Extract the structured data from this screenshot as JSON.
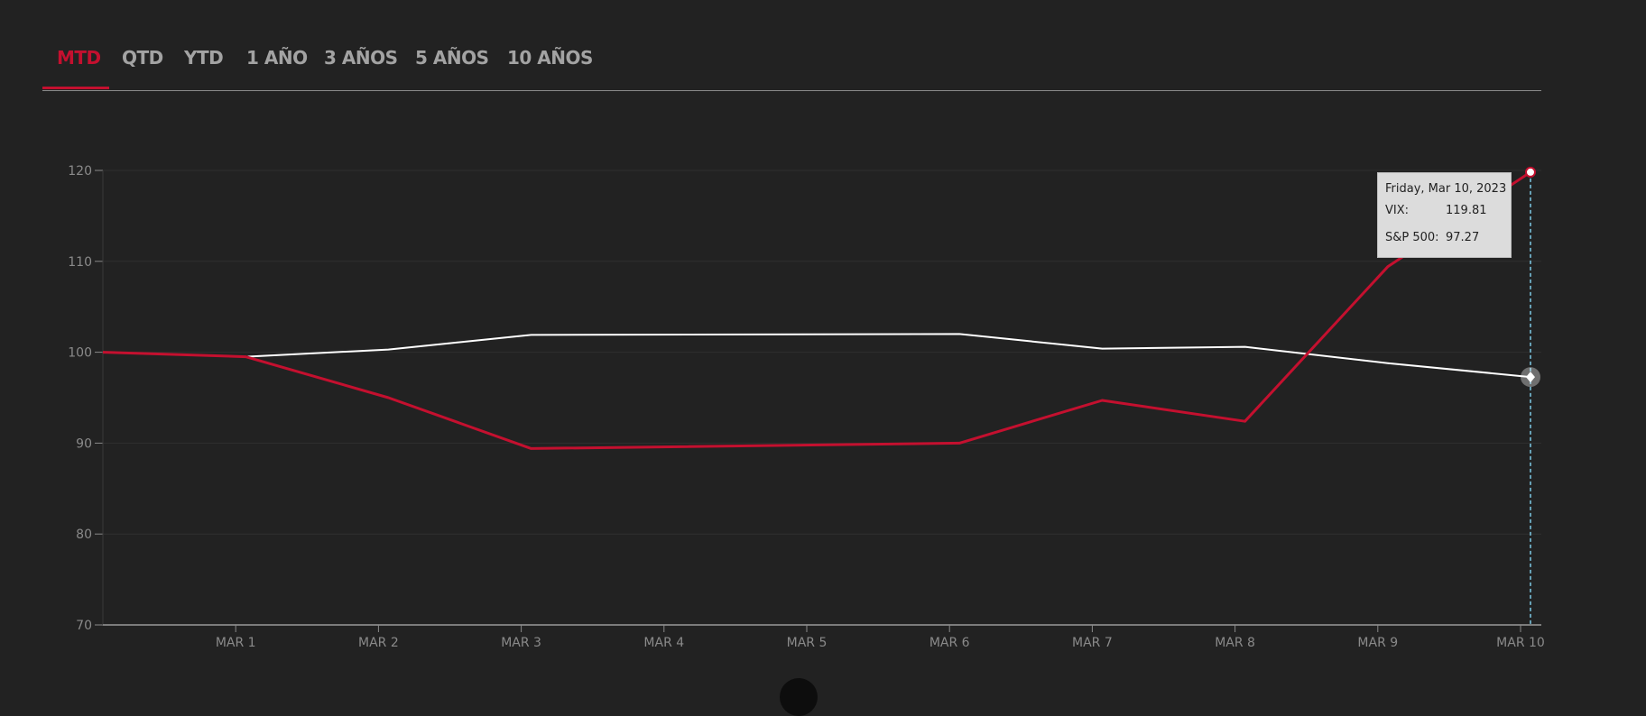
{
  "tabs": [
    {
      "label": "MTD",
      "active": true
    },
    {
      "label": "QTD",
      "active": false
    },
    {
      "label": "YTD",
      "active": false
    },
    {
      "label": "1 AÑO",
      "active": false
    },
    {
      "label": "3 AÑOS",
      "active": false
    },
    {
      "label": "5 AÑOS",
      "active": false
    },
    {
      "label": "10 AÑOS",
      "active": false
    }
  ],
  "colors": {
    "background": "#222222",
    "accent": "#c4102f",
    "vix_line": "#c4102f",
    "sp500_line": "#ffffff",
    "crosshair": "#7ecbe8"
  },
  "tooltip": {
    "date": "Friday, Mar 10, 2023",
    "vix_label": "VIX:",
    "vix_value": "119.81",
    "sp_label": "S&P 500:",
    "sp_value": "97.27"
  },
  "chart_data": {
    "type": "line",
    "title": "",
    "xlabel": "",
    "ylabel": "",
    "ylim": [
      70,
      120
    ],
    "yticks": [
      120,
      110,
      100,
      90,
      80,
      70
    ],
    "x_tick_labels": [
      "MAR 1",
      "MAR 2",
      "MAR 3",
      "MAR 4",
      "MAR 5",
      "MAR 6",
      "MAR 7",
      "MAR 8",
      "MAR 9",
      "MAR 10"
    ],
    "x_tick_dates": [
      "2023-03-01",
      "2023-03-02",
      "2023-03-03",
      "2023-03-04",
      "2023-03-05",
      "2023-03-06",
      "2023-03-07",
      "2023-03-08",
      "2023-03-09",
      "2023-03-10"
    ],
    "grid": true,
    "series": [
      {
        "name": "VIX",
        "x": [
          "2023-02-28",
          "2023-03-01",
          "2023-03-02",
          "2023-03-03",
          "2023-03-06",
          "2023-03-07",
          "2023-03-08",
          "2023-03-09",
          "2023-03-10"
        ],
        "values": [
          100,
          99.5,
          95,
          89.4,
          90,
          94.7,
          92.4,
          109.4,
          119.81
        ]
      },
      {
        "name": "S&P 500",
        "x": [
          "2023-02-28",
          "2023-03-01",
          "2023-03-02",
          "2023-03-03",
          "2023-03-06",
          "2023-03-07",
          "2023-03-08",
          "2023-03-09",
          "2023-03-10"
        ],
        "values": [
          100,
          99.5,
          100.3,
          101.9,
          102,
          100.4,
          100.6,
          98.8,
          97.27
        ]
      }
    ],
    "highlight_x": "2023-03-10"
  }
}
